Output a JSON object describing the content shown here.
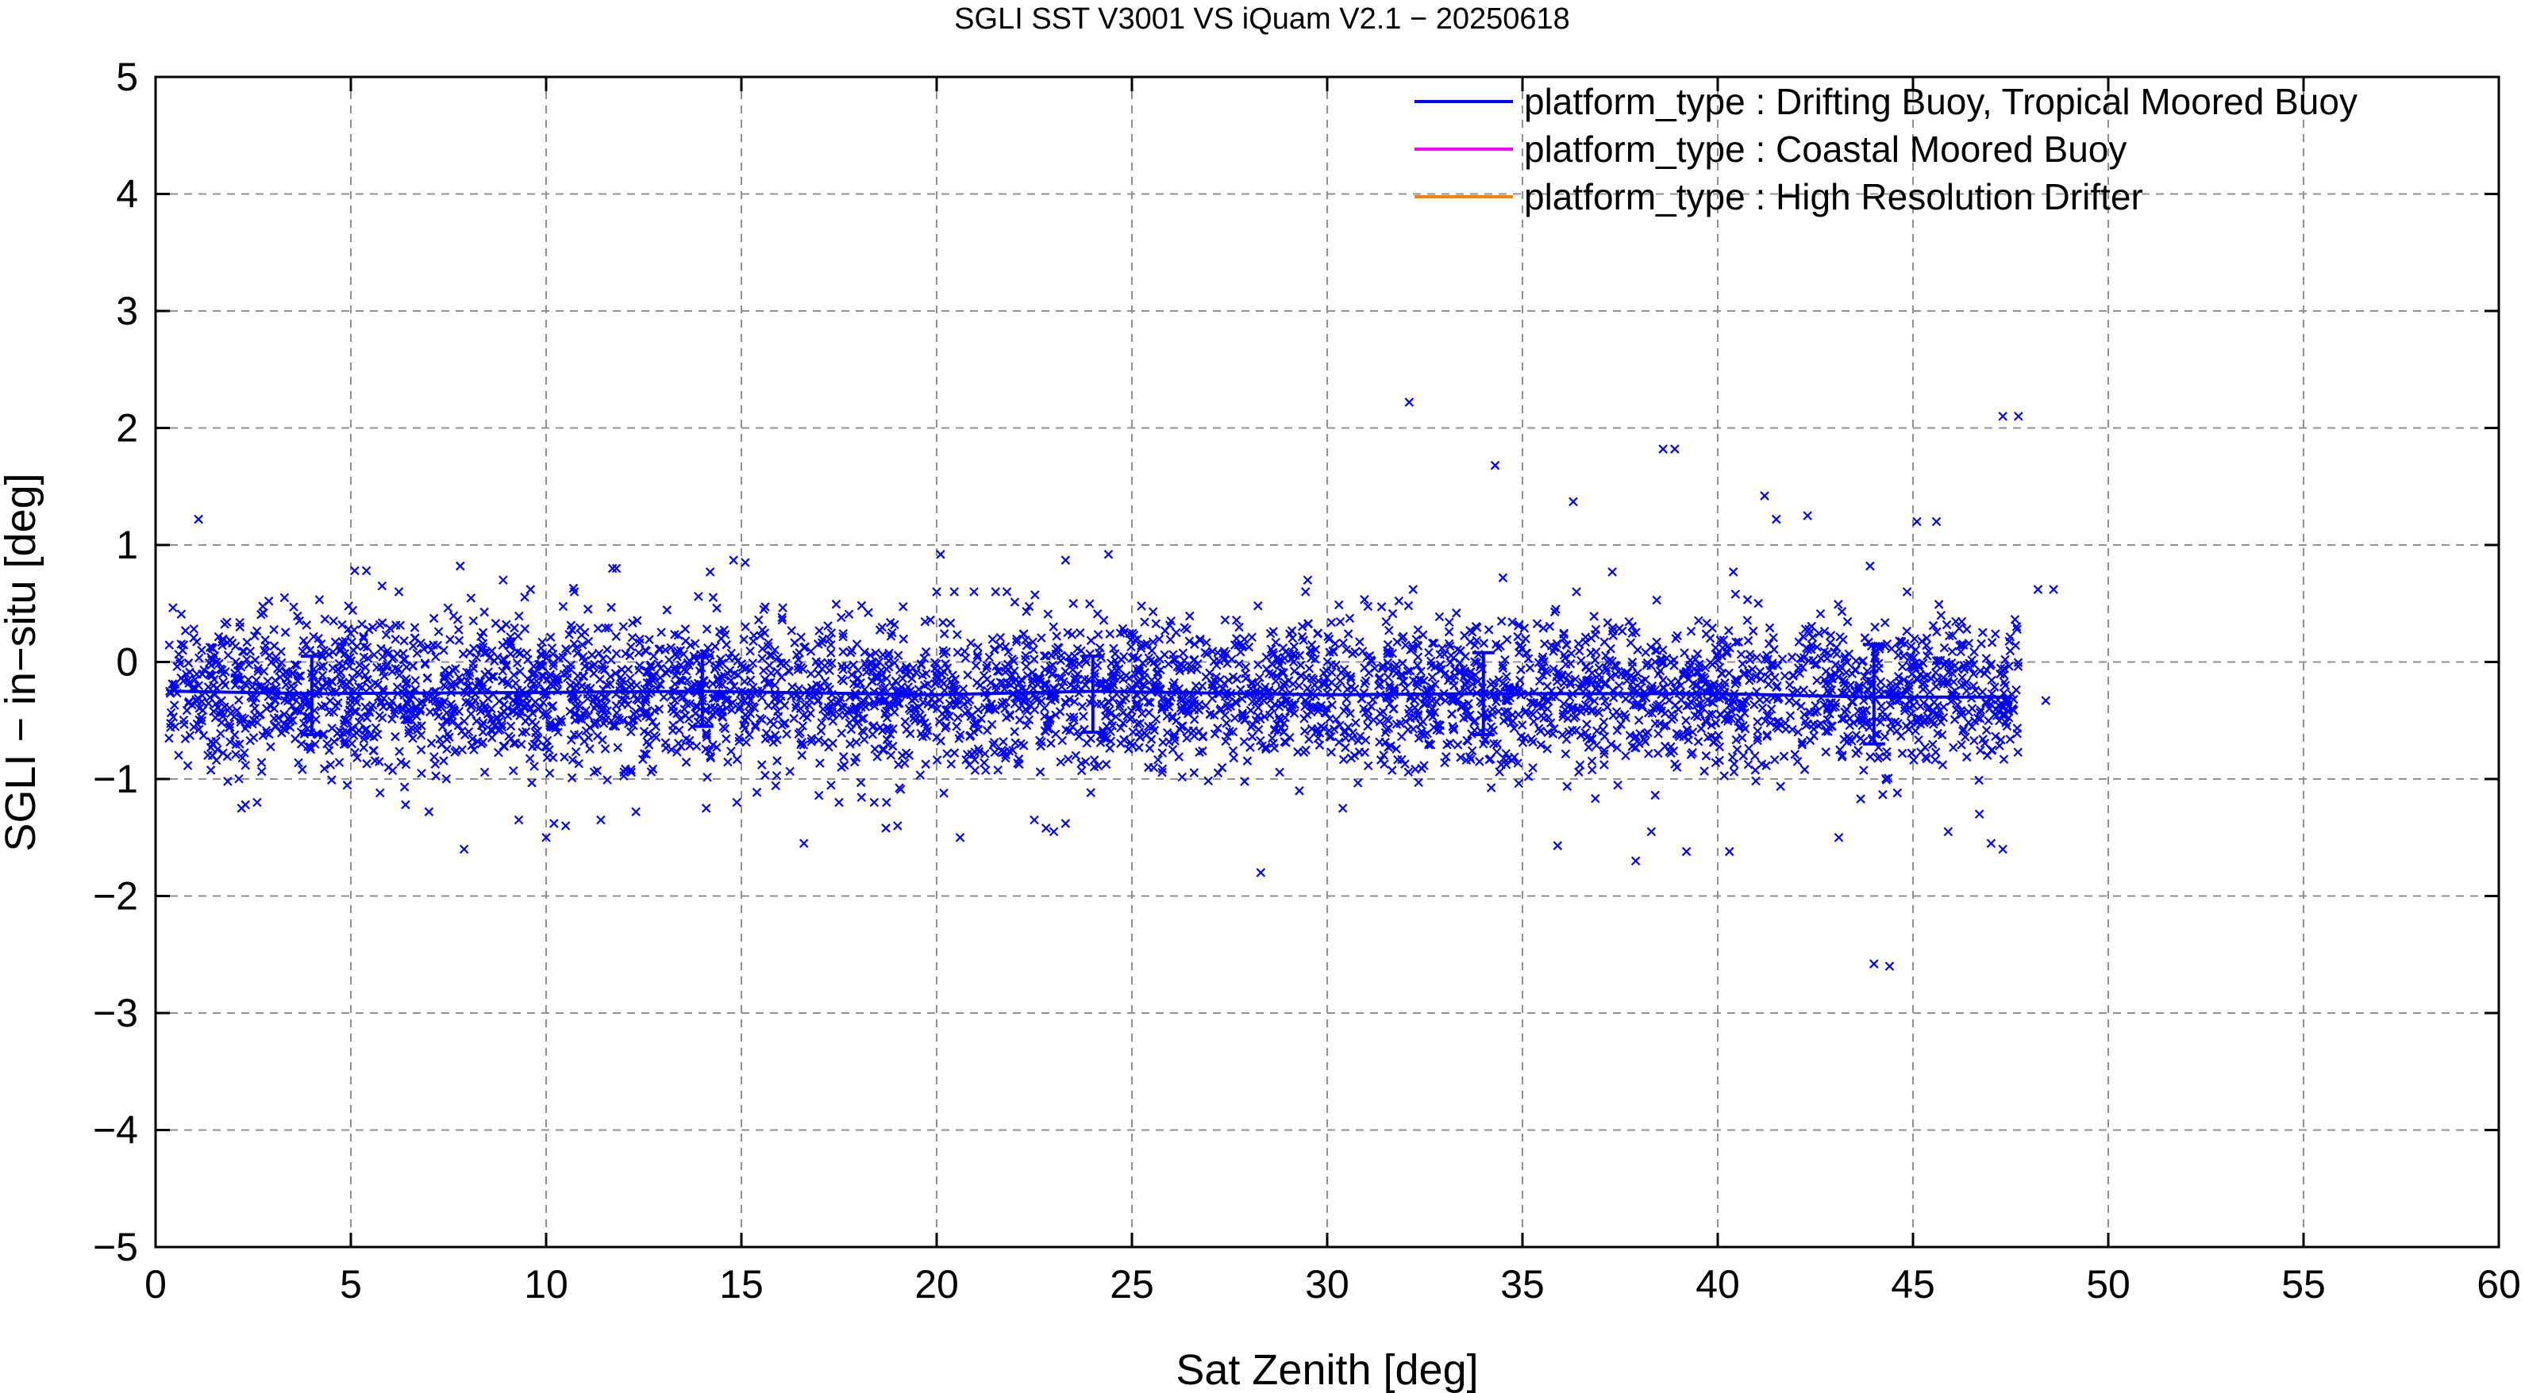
{
  "chart_data": {
    "type": "scatter",
    "title": "SGLI SST V3001 VS iQuam V2.1  − 20250618",
    "xlabel": "Sat Zenith [deg]",
    "ylabel": "SGLI − in−situ [deg]",
    "xlim": [
      0,
      60
    ],
    "ylim": [
      -5,
      5
    ],
    "x_ticks": [
      0,
      5,
      10,
      15,
      20,
      25,
      30,
      35,
      40,
      45,
      50,
      55,
      60
    ],
    "y_ticks": [
      -5,
      -4,
      -3,
      -2,
      -1,
      0,
      1,
      2,
      3,
      4,
      5
    ],
    "y_tick_labels": [
      "−5",
      "−4",
      "−3",
      "−2",
      "−1",
      "0",
      "1",
      "2",
      "3",
      "4",
      "5"
    ],
    "grid": true,
    "legend_position": "top-right",
    "series": [
      {
        "name": "platform_type : Drifting Buoy, Tropical Moored Buoy",
        "color": "#0000ff",
        "marker": "x",
        "dense_cloud": {
          "x_range": [
            0.3,
            47.7
          ],
          "center": -0.27,
          "spread": 0.32,
          "count": 4200
        },
        "mean_line": {
          "x": [
            0.5,
            4,
            10,
            14,
            20,
            24,
            30,
            34,
            40,
            44,
            47.5
          ],
          "y": [
            -0.25,
            -0.27,
            -0.26,
            -0.25,
            -0.28,
            -0.25,
            -0.28,
            -0.27,
            -0.27,
            -0.3,
            -0.3
          ]
        },
        "error_bars": [
          {
            "x": 4,
            "mean": -0.27,
            "low": -0.62,
            "high": 0.05
          },
          {
            "x": 14,
            "mean": -0.25,
            "low": -0.55,
            "high": 0.05
          },
          {
            "x": 24,
            "mean": -0.26,
            "low": -0.6,
            "high": 0.05
          },
          {
            "x": 34,
            "mean": -0.27,
            "low": -0.62,
            "high": 0.08
          },
          {
            "x": 44,
            "mean": -0.3,
            "low": -0.7,
            "high": 0.15
          }
        ],
        "outliers": [
          [
            1.1,
            1.22
          ],
          [
            2.2,
            -1.25
          ],
          [
            2.3,
            -1.22
          ],
          [
            2.6,
            -1.2
          ],
          [
            2.9,
            0.52
          ],
          [
            3.3,
            0.55
          ],
          [
            5.1,
            0.78
          ],
          [
            5.4,
            0.78
          ],
          [
            5.8,
            0.65
          ],
          [
            6.4,
            -1.22
          ],
          [
            7.0,
            -1.28
          ],
          [
            7.8,
            0.82
          ],
          [
            7.9,
            -1.6
          ],
          [
            8.9,
            0.7
          ],
          [
            9.3,
            -1.35
          ],
          [
            9.6,
            0.62
          ],
          [
            10.0,
            -1.5
          ],
          [
            10.2,
            -1.38
          ],
          [
            10.5,
            -1.4
          ],
          [
            10.7,
            0.63
          ],
          [
            11.4,
            -1.35
          ],
          [
            11.7,
            0.8
          ],
          [
            11.8,
            0.8
          ],
          [
            12.3,
            -1.28
          ],
          [
            13.9,
            0.56
          ],
          [
            14.1,
            -1.25
          ],
          [
            14.2,
            0.77
          ],
          [
            14.8,
            0.87
          ],
          [
            15.1,
            0.85
          ],
          [
            16.6,
            -1.55
          ],
          [
            17.5,
            -1.2
          ],
          [
            18.4,
            -1.2
          ],
          [
            18.7,
            -1.42
          ],
          [
            19.0,
            -1.4
          ],
          [
            20.1,
            0.92
          ],
          [
            20.6,
            -1.5
          ],
          [
            21.8,
            0.6
          ],
          [
            22.5,
            -1.35
          ],
          [
            22.8,
            -1.42
          ],
          [
            23.0,
            -1.45
          ],
          [
            23.3,
            -1.38
          ],
          [
            23.3,
            0.87
          ],
          [
            23.5,
            0.5
          ],
          [
            24.4,
            0.92
          ],
          [
            28.3,
            -1.8
          ],
          [
            29.5,
            0.7
          ],
          [
            30.4,
            -1.25
          ],
          [
            32.1,
            2.22
          ],
          [
            32.2,
            0.62
          ],
          [
            34.3,
            1.68
          ],
          [
            34.5,
            0.72
          ],
          [
            35.9,
            -1.57
          ],
          [
            36.3,
            1.37
          ],
          [
            37.3,
            0.77
          ],
          [
            37.9,
            -1.7
          ],
          [
            38.3,
            -1.45
          ],
          [
            38.6,
            1.82
          ],
          [
            38.9,
            1.82
          ],
          [
            39.2,
            -1.62
          ],
          [
            40.3,
            -1.62
          ],
          [
            40.4,
            0.77
          ],
          [
            41.2,
            1.42
          ],
          [
            41.5,
            1.22
          ],
          [
            42.3,
            1.25
          ],
          [
            43.1,
            -1.5
          ],
          [
            43.9,
            0.82
          ],
          [
            44.0,
            -2.58
          ],
          [
            44.4,
            -2.6
          ],
          [
            45.1,
            1.2
          ],
          [
            45.6,
            1.2
          ],
          [
            45.9,
            -1.45
          ],
          [
            46.7,
            -1.3
          ],
          [
            47.0,
            -1.55
          ],
          [
            47.3,
            2.1
          ],
          [
            47.7,
            2.1
          ],
          [
            47.3,
            -1.6
          ],
          [
            48.2,
            0.62
          ],
          [
            48.6,
            0.62
          ],
          [
            48.4,
            -0.33
          ]
        ]
      },
      {
        "name": "platform_type : Coastal Moored Buoy",
        "color": "#ff00ff"
      },
      {
        "name": "platform_type : High Resolution Drifter",
        "color": "#ff8000"
      }
    ]
  }
}
